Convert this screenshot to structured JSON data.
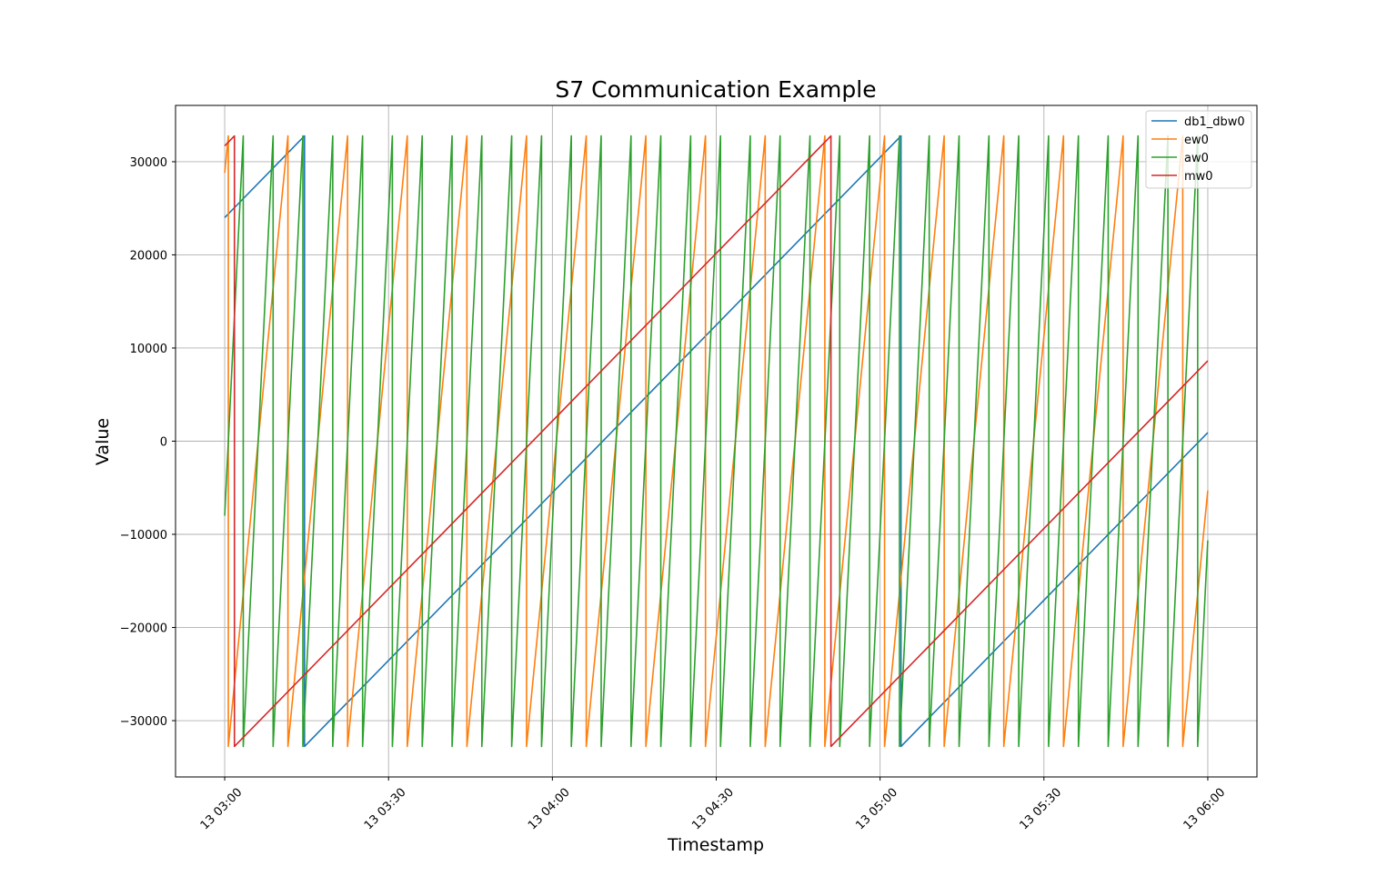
{
  "chart_data": {
    "type": "line",
    "title": "S7 Communication Example",
    "xlabel": "Timestamp",
    "ylabel": "Value",
    "xlim": [
      "02:51:00",
      "06:09:00"
    ],
    "ylim": [
      -36045,
      36044
    ],
    "grid": true,
    "legend_position": "top-right",
    "x_ticks": [
      {
        "t": "03:00:00",
        "label": "13 03:00"
      },
      {
        "t": "03:30:00",
        "label": "13 03:30"
      },
      {
        "t": "04:00:00",
        "label": "13 04:00"
      },
      {
        "t": "04:30:00",
        "label": "13 04:30"
      },
      {
        "t": "05:00:00",
        "label": "13 05:00"
      },
      {
        "t": "05:30:00",
        "label": "13 05:30"
      },
      {
        "t": "06:00:00",
        "label": "13 06:00"
      }
    ],
    "y_ticks": [
      {
        "v": -30000,
        "label": "−30000"
      },
      {
        "v": -20000,
        "label": "−20000"
      },
      {
        "v": -10000,
        "label": "−10000"
      },
      {
        "v": 0,
        "label": "0"
      },
      {
        "v": 10000,
        "label": "10000"
      },
      {
        "v": 20000,
        "label": "20000"
      },
      {
        "v": 30000,
        "label": "30000"
      }
    ],
    "series": [
      {
        "name": "db1_dbw0",
        "color": "#1f77b4",
        "points": [
          [
            "03:00:00",
            24000
          ],
          [
            "03:14:37",
            32767
          ],
          [
            "03:14:37",
            -32768
          ],
          [
            "05:03:50",
            32767
          ],
          [
            "05:03:50",
            -32768
          ],
          [
            "06:00:00",
            922
          ]
        ]
      },
      {
        "name": "ew0",
        "color": "#ff7f0e",
        "points": [
          [
            "03:00:00",
            28800
          ],
          [
            "03:00:40",
            32767
          ],
          [
            "03:00:40",
            -32768
          ],
          [
            "03:11:35",
            32767
          ],
          [
            "03:11:35",
            -32768
          ],
          [
            "03:22:30",
            32767
          ],
          [
            "03:22:30",
            -32768
          ],
          [
            "03:33:26",
            32767
          ],
          [
            "03:33:26",
            -32768
          ],
          [
            "03:44:21",
            32767
          ],
          [
            "03:44:21",
            -32768
          ],
          [
            "03:55:16",
            32767
          ],
          [
            "03:55:16",
            -32768
          ],
          [
            "04:06:12",
            32767
          ],
          [
            "04:06:12",
            -32768
          ],
          [
            "04:17:07",
            32767
          ],
          [
            "04:17:07",
            -32768
          ],
          [
            "04:28:02",
            32767
          ],
          [
            "04:28:02",
            -32768
          ],
          [
            "04:38:58",
            32767
          ],
          [
            "04:38:58",
            -32768
          ],
          [
            "04:49:53",
            32767
          ],
          [
            "04:49:53",
            -32768
          ],
          [
            "05:00:49",
            32767
          ],
          [
            "05:00:49",
            -32768
          ],
          [
            "05:11:44",
            32767
          ],
          [
            "05:11:44",
            -32768
          ],
          [
            "05:22:39",
            32767
          ],
          [
            "05:22:39",
            -32768
          ],
          [
            "05:33:35",
            32767
          ],
          [
            "05:33:35",
            -32768
          ],
          [
            "05:44:30",
            32767
          ],
          [
            "05:44:30",
            -32768
          ],
          [
            "05:55:25",
            32767
          ],
          [
            "05:55:25",
            -32768
          ],
          [
            "06:00:00",
            -5298
          ]
        ]
      },
      {
        "name": "aw0",
        "color": "#2ca02c",
        "points": [
          [
            "03:00:00",
            -8000
          ],
          [
            "03:03:24",
            32767
          ],
          [
            "03:03:24",
            -32768
          ],
          [
            "03:08:52",
            32767
          ],
          [
            "03:08:52",
            -32768
          ],
          [
            "03:14:19",
            32767
          ],
          [
            "03:14:19",
            -32768
          ],
          [
            "03:19:47",
            32767
          ],
          [
            "03:19:47",
            -32768
          ],
          [
            "03:25:15",
            32767
          ],
          [
            "03:25:15",
            -32768
          ],
          [
            "03:30:42",
            32767
          ],
          [
            "03:30:42",
            -32768
          ],
          [
            "03:36:10",
            32767
          ],
          [
            "03:36:10",
            -32768
          ],
          [
            "03:41:38",
            32767
          ],
          [
            "03:41:38",
            -32768
          ],
          [
            "03:47:05",
            32767
          ],
          [
            "03:47:05",
            -32768
          ],
          [
            "03:52:33",
            32767
          ],
          [
            "03:52:33",
            -32768
          ],
          [
            "03:58:01",
            32767
          ],
          [
            "03:58:01",
            -32768
          ],
          [
            "04:03:28",
            32767
          ],
          [
            "04:03:28",
            -32768
          ],
          [
            "04:08:56",
            32767
          ],
          [
            "04:08:56",
            -32768
          ],
          [
            "04:14:24",
            32767
          ],
          [
            "04:14:24",
            -32768
          ],
          [
            "04:19:51",
            32767
          ],
          [
            "04:19:51",
            -32768
          ],
          [
            "04:25:19",
            32767
          ],
          [
            "04:25:19",
            -32768
          ],
          [
            "04:30:47",
            32767
          ],
          [
            "04:30:47",
            -32768
          ],
          [
            "04:36:14",
            32767
          ],
          [
            "04:36:14",
            -32768
          ],
          [
            "04:41:42",
            32767
          ],
          [
            "04:41:42",
            -32768
          ],
          [
            "04:47:10",
            32767
          ],
          [
            "04:47:10",
            -32768
          ],
          [
            "04:52:37",
            32767
          ],
          [
            "04:52:37",
            -32768
          ],
          [
            "04:58:05",
            32767
          ],
          [
            "04:58:05",
            -32768
          ],
          [
            "05:03:33",
            32767
          ],
          [
            "05:03:33",
            -32768
          ],
          [
            "05:09:00",
            32767
          ],
          [
            "05:09:00",
            -32768
          ],
          [
            "05:14:28",
            32767
          ],
          [
            "05:14:28",
            -32768
          ],
          [
            "05:19:56",
            32767
          ],
          [
            "05:19:56",
            -32768
          ],
          [
            "05:25:23",
            32767
          ],
          [
            "05:25:23",
            -32768
          ],
          [
            "05:30:51",
            32767
          ],
          [
            "05:30:51",
            -32768
          ],
          [
            "05:36:19",
            32767
          ],
          [
            "05:36:19",
            -32768
          ],
          [
            "05:41:46",
            32767
          ],
          [
            "05:41:46",
            -32768
          ],
          [
            "05:47:14",
            32767
          ],
          [
            "05:47:14",
            -32768
          ],
          [
            "05:52:42",
            32767
          ],
          [
            "05:52:42",
            -32768
          ],
          [
            "05:58:09",
            32767
          ],
          [
            "05:58:09",
            -32768
          ],
          [
            "06:00:00",
            -10648
          ]
        ]
      },
      {
        "name": "mw0",
        "color": "#d62728",
        "points": [
          [
            "03:00:00",
            31700
          ],
          [
            "03:01:47",
            32767
          ],
          [
            "03:01:47",
            -32768
          ],
          [
            "04:51:00",
            32767
          ],
          [
            "04:51:00",
            -32768
          ],
          [
            "06:00:00",
            8622
          ]
        ]
      }
    ]
  }
}
